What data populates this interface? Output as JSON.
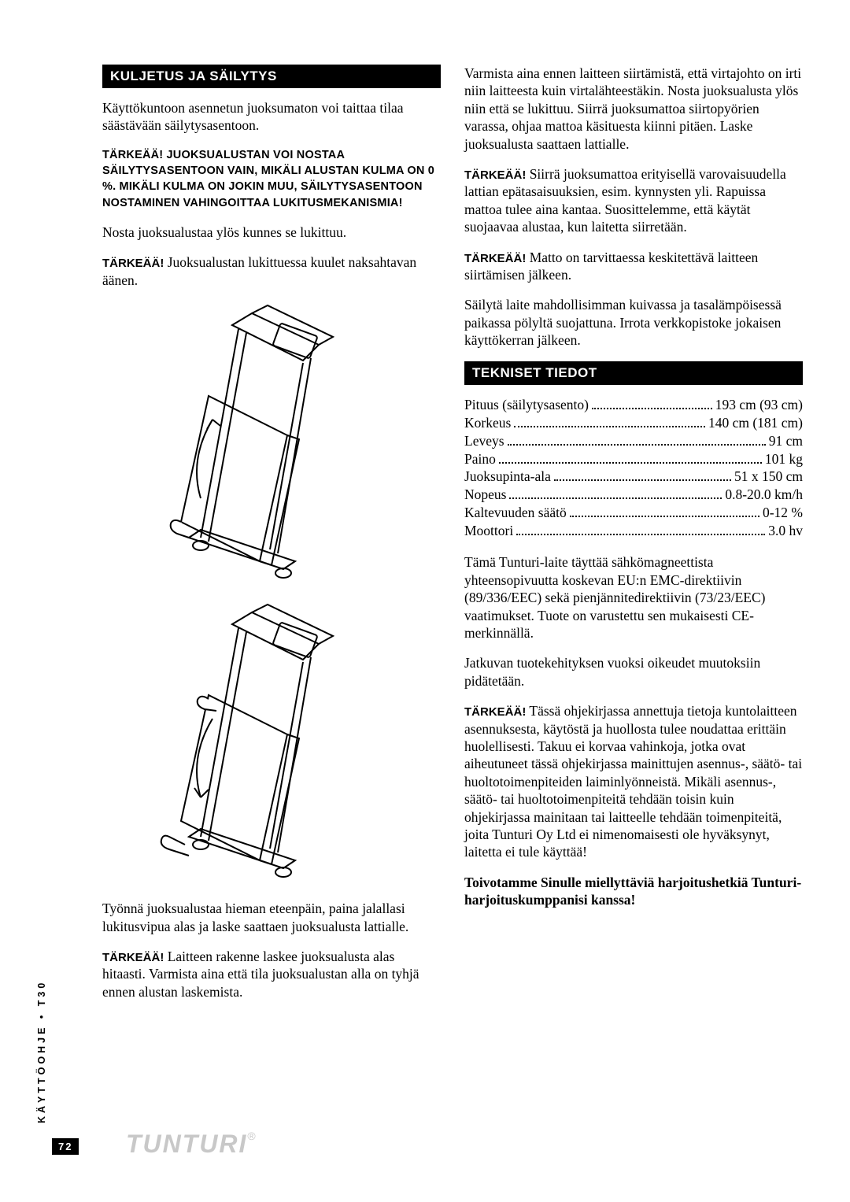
{
  "side_label": "KÄYTTÖOHJE • T30",
  "page_number": "72",
  "logo_text": "TUNTURI",
  "logo_r": "®",
  "left": {
    "heading1": "KULJETUS JA SÄILYTYS",
    "p1": "Käyttökuntoon asennetun juoksumaton voi taittaa tilaa säästävään säilytysasentoon.",
    "warn1": "TÄRKEÄÄ! JUOKSUALUSTAN VOI NOSTAA SÄILYTYSASENTOON VAIN, MIKÄLI ALUSTAN KULMA ON 0 %. MIKÄLI KULMA ON JOKIN MUU, SÄILYTYSASENTOON NOSTAMINEN VAHINGOITTAA LUKITUSMEKANISMIA!",
    "p2": "Nosta juoksualustaa ylös kunnes se lukittuu.",
    "warn2_b": "TÄRKEÄÄ!",
    "warn2_t": " Juoksualustan lukittuessa kuulet naksahtavan äänen.",
    "p3": "Työnnä juoksualustaa hieman eteenpäin, paina jalallasi lukitusvipua alas ja laske saattaen juoksualusta lattialle.",
    "warn3_b": "TÄRKEÄÄ!",
    "warn3_t": " Laitteen rakenne laskee juoksualusta alas hitaasti. Varmista aina että tila juoksualustan alla on tyhjä ennen alustan laskemista."
  },
  "right": {
    "p1": "Varmista aina ennen laitteen siirtämistä, että virtajohto on irti niin laitteesta kuin virtalähteestäkin. Nosta juoksualusta ylös niin että se lukittuu. Siirrä juoksumattoa siirtopyörien varassa, ohjaa mattoa käsituesta kiinni pitäen. Laske juoksualusta saattaen lattialle.",
    "warn1_b": "TÄRKEÄÄ!",
    "warn1_t": " Siirrä juoksumattoa erityisellä varovaisuudella lattian epätasaisuuksien, esim. kynnysten yli. Rapuissa mattoa tulee aina kantaa. Suosittelemme, että käytät suojaavaa alustaa, kun laitetta siirretään.",
    "warn2_b": "TÄRKEÄÄ!",
    "warn2_t": " Matto on tarvittaessa keskitettävä laitteen siirtämisen jälkeen.",
    "p2": "Säilytä laite mahdollisimman kuivassa ja tasalämpöisessä paikassa pölyltä suojattuna. Irrota verkkopistoke jokaisen käyttökerran jälkeen.",
    "heading2": "TEKNISET TIEDOT",
    "specs": [
      {
        "label": "Pituus (säilytysasento)",
        "value": "193 cm (93 cm)"
      },
      {
        "label": "Korkeus",
        "value": "140 cm (181 cm)"
      },
      {
        "label": "Leveys",
        "value": "91 cm"
      },
      {
        "label": "Paino",
        "value": "101 kg"
      },
      {
        "label": "Juoksupinta-ala",
        "value": "51 x 150 cm"
      },
      {
        "label": "Nopeus",
        "value": "0.8-20.0 km/h"
      },
      {
        "label": "Kaltevuuden säätö",
        "value": "0-12 %"
      },
      {
        "label": "Moottori",
        "value": "3.0 hv"
      }
    ],
    "p3": "Tämä Tunturi-laite täyttää sähkömagneettista yhteensopivuutta koskevan EU:n EMC-direktiivin (89/336/EEC) sekä pienjännitedirektiivin (73/23/EEC) vaatimukset. Tuote on varustettu sen mukaisesti CE-merkinnällä.",
    "p4": "Jatkuvan tuotekehityksen vuoksi oikeudet muutoksiin pidätetään.",
    "warn3_b": "TÄRKEÄÄ!",
    "warn3_t": " Tässä ohjekirjassa annettuja tietoja kuntolaitteen asennuksesta, käytöstä ja huollosta tulee noudattaa erittäin huolellisesti. Takuu ei korvaa vahinkoja, jotka ovat aiheutuneet tässä ohjekirjassa mainittujen asennus-, säätö- tai huoltotoimenpiteiden laiminlyönneistä. Mikäli asennus-, säätö- tai huoltotoimenpiteitä tehdään toisin kuin ohjekirjassa mainitaan tai laitteelle tehdään toimenpiteitä, joita Tunturi Oy Ltd ei nimenomaisesti ole hyväksynyt, laitetta ei tule käyttää!",
    "closing": "Toivotamme Sinulle miellyttäviä harjoitushetkiä Tunturi-harjoituskumppanisi kanssa!"
  },
  "figure": {
    "stroke": "#000000",
    "fill": "#ffffff"
  }
}
